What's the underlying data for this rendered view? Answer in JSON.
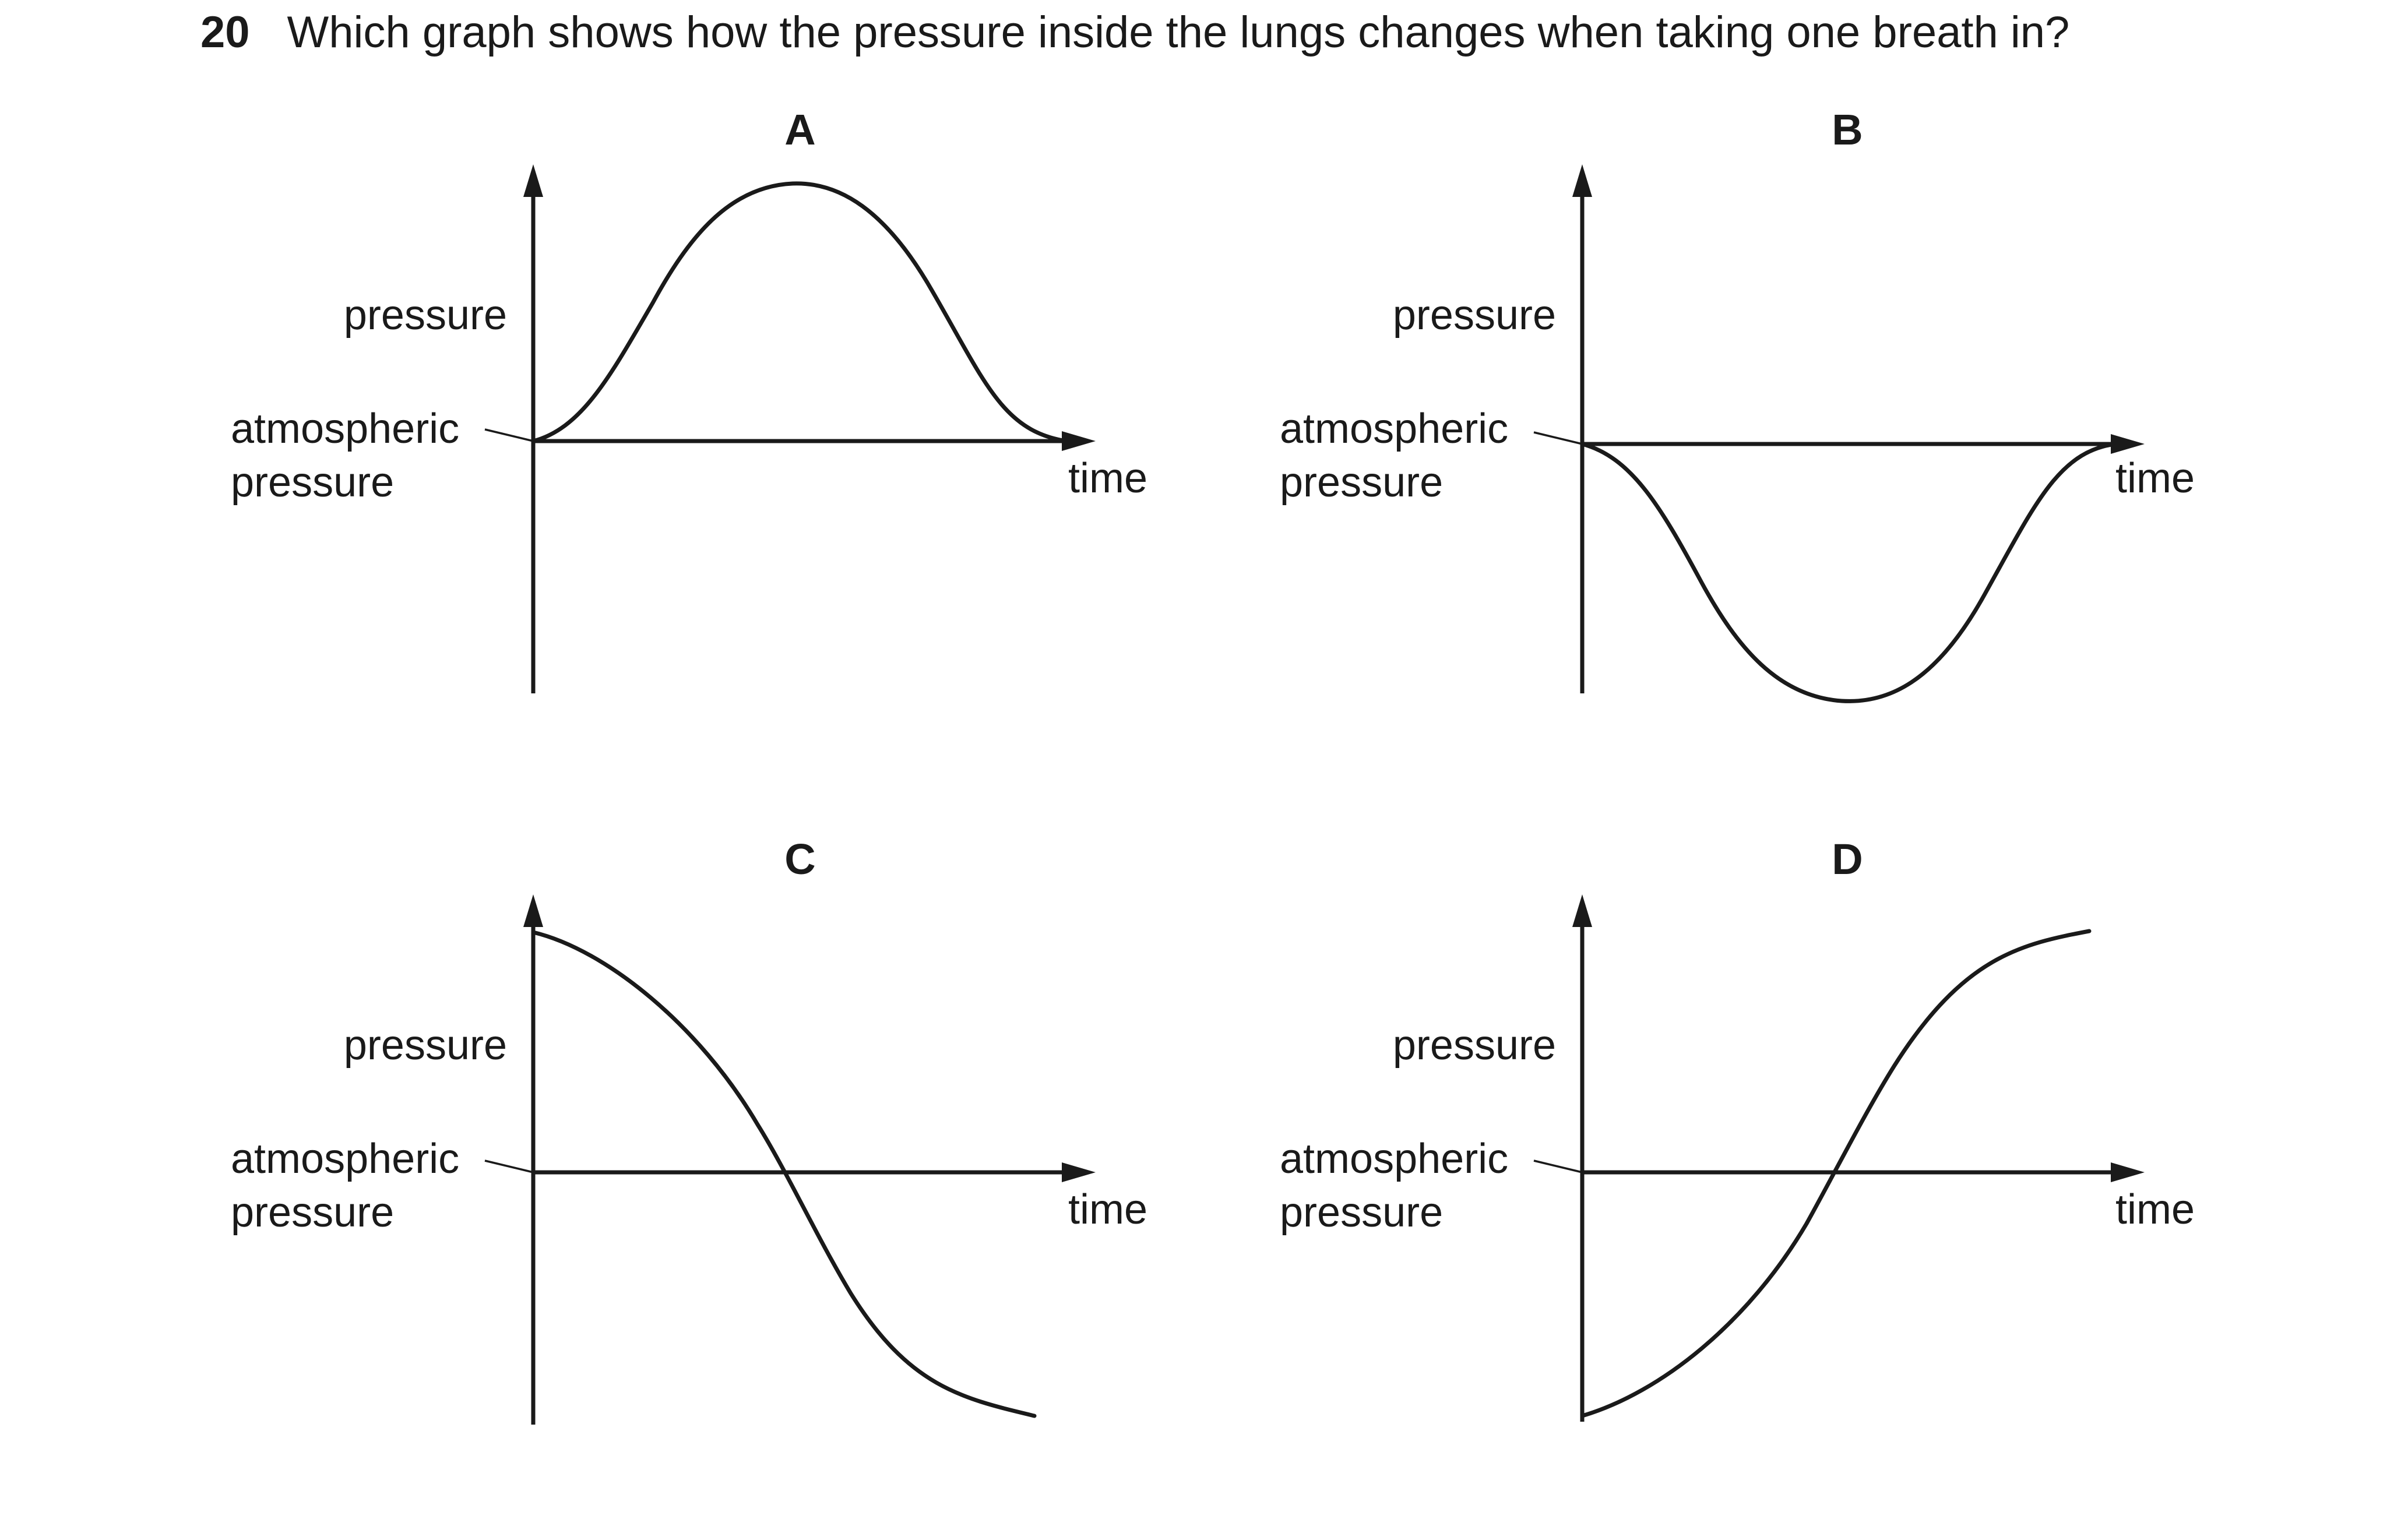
{
  "question": {
    "number": "20",
    "text": "Which graph shows how the pressure inside the lungs changes when taking one breath in?"
  },
  "options": [
    {
      "letter": "A",
      "y_label": "pressure",
      "reference_label_line1": "atmospheric",
      "reference_label_line2": "pressure",
      "x_label": "time",
      "curve_shape": "rises above atmospheric pressure then returns to atmospheric pressure"
    },
    {
      "letter": "B",
      "y_label": "pressure",
      "reference_label_line1": "atmospheric",
      "reference_label_line2": "pressure",
      "x_label": "time",
      "curve_shape": "falls below atmospheric pressure then returns to atmospheric pressure"
    },
    {
      "letter": "C",
      "y_label": "pressure",
      "reference_label_line1": "atmospheric",
      "reference_label_line2": "pressure",
      "x_label": "time",
      "curve_shape": "starts above atmospheric pressure and decreases to below it"
    },
    {
      "letter": "D",
      "y_label": "pressure",
      "reference_label_line1": "atmospheric",
      "reference_label_line2": "pressure",
      "x_label": "time",
      "curve_shape": "starts below atmospheric pressure and increases to above it"
    }
  ]
}
